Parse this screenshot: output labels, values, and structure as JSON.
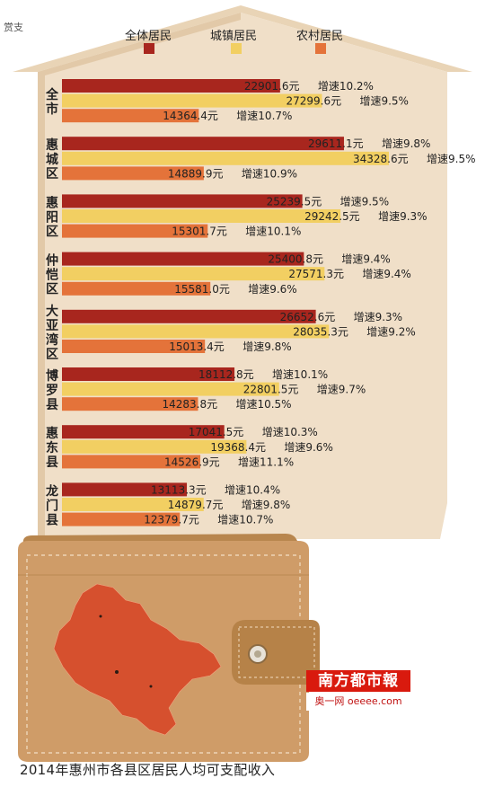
{
  "credit": "赏支",
  "caption": "2014年惠州市各县区居民人均可支配收入",
  "logo": {
    "name": "南方都市報",
    "sub": "奥一网 oeeee.com"
  },
  "colors": {
    "rural_bar": "#e4733a",
    "urban_bar": "#f2cf62",
    "total_bar": "#a8261e",
    "house": "#f0dfc8",
    "wallet": "#cf9c68",
    "map": "#d6502e"
  },
  "chart_data": {
    "type": "bar",
    "orientation": "horizontal",
    "xlim": [
      0,
      35000
    ],
    "legend": [
      "全体居民",
      "城镇居民",
      "农村居民"
    ],
    "legend_position": "top",
    "groups": [
      {
        "region": "全市",
        "bars": [
          {
            "series": "全体居民",
            "value": 22901.6,
            "label": "22901.6元",
            "growth": "增速10.2%"
          },
          {
            "series": "城镇居民",
            "value": 27299.6,
            "label": "27299.6元",
            "growth": "增速9.5%"
          },
          {
            "series": "农村居民",
            "value": 14364.4,
            "label": "14364.4元",
            "growth": "增速10.7%"
          }
        ]
      },
      {
        "region": "惠城区",
        "bars": [
          {
            "series": "全体居民",
            "value": 29611.1,
            "label": "29611.1元",
            "growth": "增速9.8%"
          },
          {
            "series": "城镇居民",
            "value": 34328.6,
            "label": "34328.6元",
            "growth": "增速9.5%"
          },
          {
            "series": "农村居民",
            "value": 14889.9,
            "label": "14889.9元",
            "growth": "增速10.9%"
          }
        ]
      },
      {
        "region": "惠阳区",
        "bars": [
          {
            "series": "全体居民",
            "value": 25239.5,
            "label": "25239.5元",
            "growth": "增速9.5%"
          },
          {
            "series": "城镇居民",
            "value": 29242.5,
            "label": "29242.5元",
            "growth": "增速9.3%"
          },
          {
            "series": "农村居民",
            "value": 15301.7,
            "label": "15301.7元",
            "growth": "增速10.1%"
          }
        ]
      },
      {
        "region": "仲恺区",
        "bars": [
          {
            "series": "全体居民",
            "value": 25400.8,
            "label": "25400.8元",
            "growth": "增速9.4%"
          },
          {
            "series": "城镇居民",
            "value": 27571.3,
            "label": "27571.3元",
            "growth": "增速9.4%"
          },
          {
            "series": "农村居民",
            "value": 15581.0,
            "label": "15581.0元",
            "growth": "增速9.6%"
          }
        ]
      },
      {
        "region": "大亚湾区",
        "bars": [
          {
            "series": "全体居民",
            "value": 26652.6,
            "label": "26652.6元",
            "growth": "增速9.3%"
          },
          {
            "series": "城镇居民",
            "value": 28035.3,
            "label": "28035.3元",
            "growth": "增速9.2%"
          },
          {
            "series": "农村居民",
            "value": 15013.4,
            "label": "15013.4元",
            "growth": "增速9.8%"
          }
        ]
      },
      {
        "region": "博罗县",
        "bars": [
          {
            "series": "全体居民",
            "value": 18112.8,
            "label": "18112.8元",
            "growth": "增速10.1%"
          },
          {
            "series": "城镇居民",
            "value": 22801.5,
            "label": "22801.5元",
            "growth": "增速9.7%"
          },
          {
            "series": "农村居民",
            "value": 14283.8,
            "label": "14283.8元",
            "growth": "增速10.5%"
          }
        ]
      },
      {
        "region": "惠东县",
        "bars": [
          {
            "series": "全体居民",
            "value": 17041.5,
            "label": "17041.5元",
            "growth": "增速10.3%"
          },
          {
            "series": "城镇居民",
            "value": 19368.4,
            "label": "19368.4元",
            "growth": "增速9.6%"
          },
          {
            "series": "农村居民",
            "value": 14526.9,
            "label": "14526.9元",
            "growth": "增速11.1%"
          }
        ]
      },
      {
        "region": "龙门县",
        "bars": [
          {
            "series": "全体居民",
            "value": 13113.3,
            "label": "13113.3元",
            "growth": "增速10.4%"
          },
          {
            "series": "城镇居民",
            "value": 14879.7,
            "label": "14879.7元",
            "growth": "增速9.8%"
          },
          {
            "series": "农村居民",
            "value": 12379.7,
            "label": "12379.7元",
            "growth": "增速10.7%"
          }
        ]
      }
    ]
  }
}
